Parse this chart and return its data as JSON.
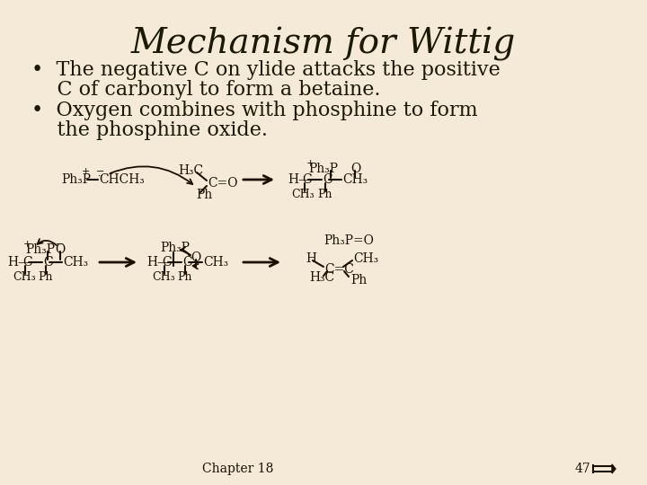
{
  "bg_color": "#f5ead8",
  "title": "Mechanism for Wittig",
  "title_fontsize": 28,
  "title_font": "serif",
  "bullet1_line1": "•  The negative C on ylide attacks the positive",
  "bullet1_line2": "    C of carbonyl to form a betaine.",
  "bullet2_line1": "•  Oxygen combines with phosphine to form",
  "bullet2_line2": "    the phosphine oxide.",
  "text_fontsize": 16,
  "text_color": "#1a1a00",
  "footer_text": "Chapter 18",
  "footer_num": "47",
  "structure_color": "#1a1000"
}
